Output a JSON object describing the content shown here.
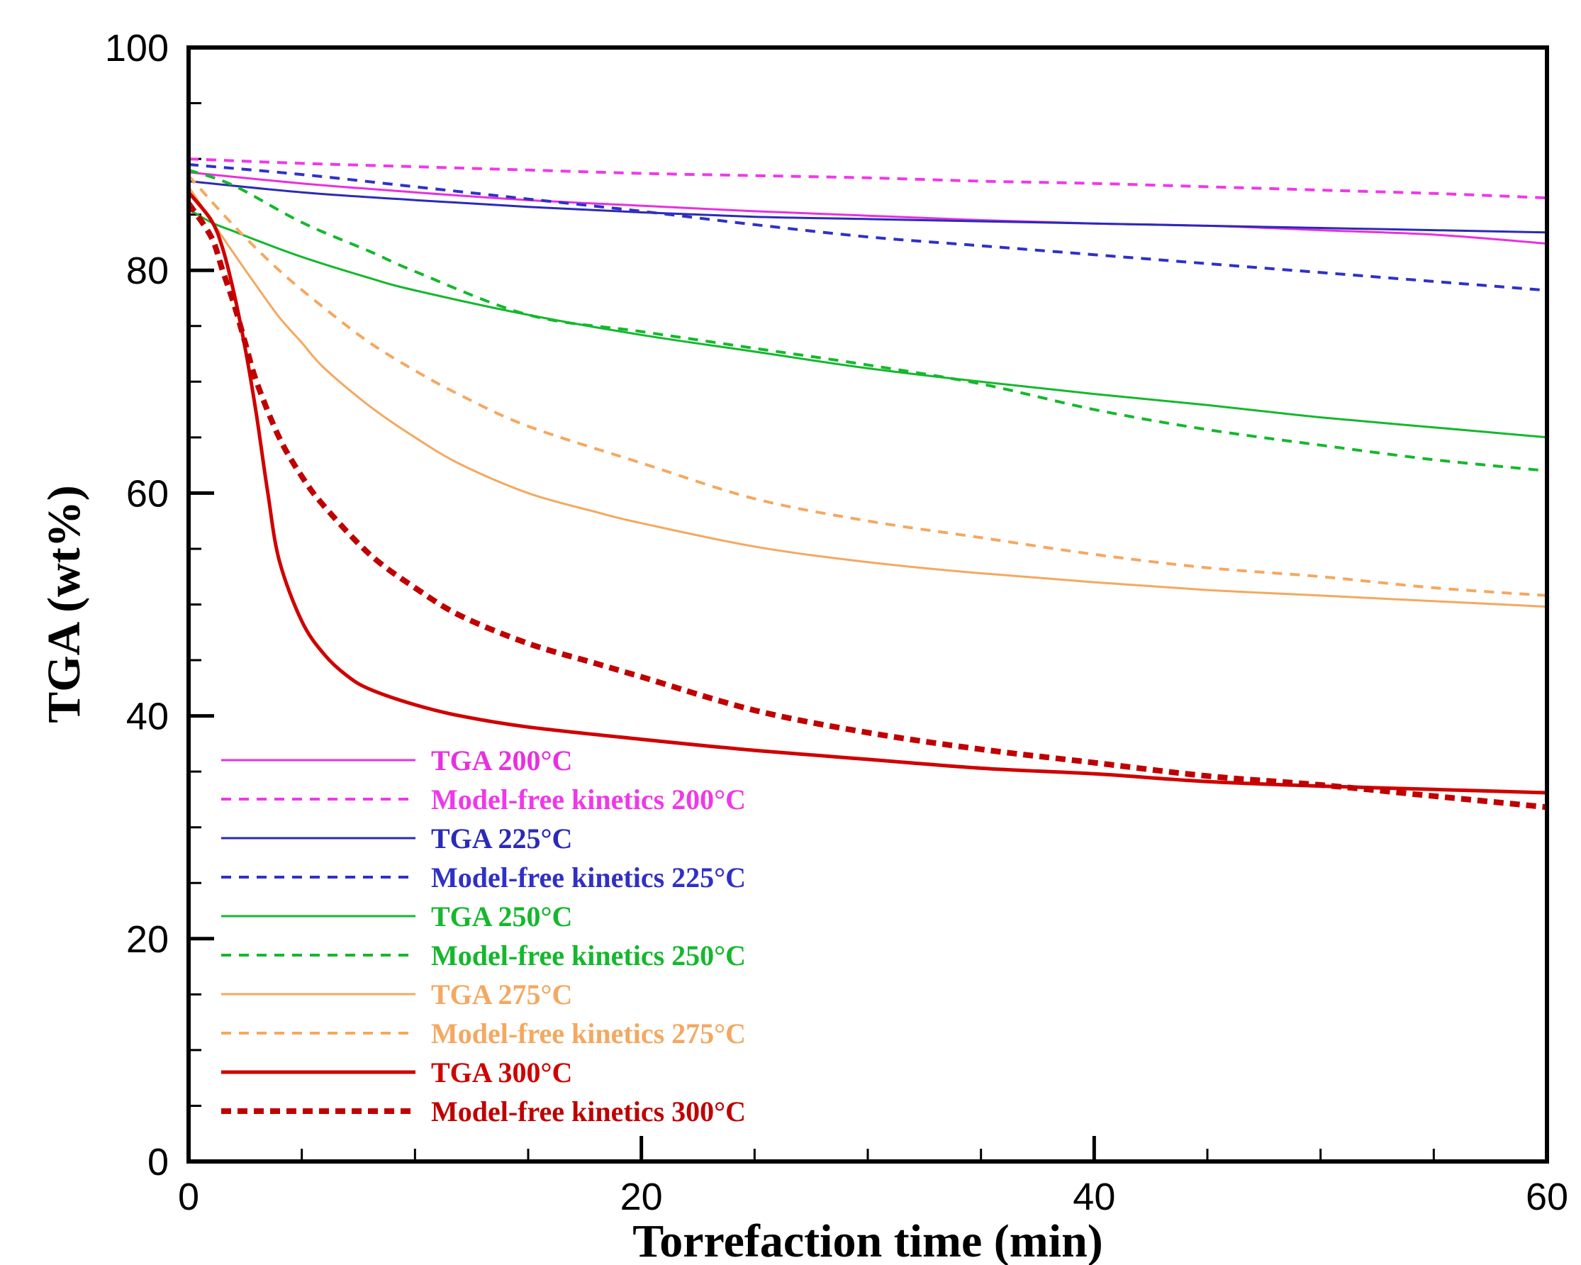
{
  "chart_data": {
    "type": "line",
    "title": "",
    "xlabel": "Torrefaction time (min)",
    "ylabel": "TGA (wt%)",
    "xlim": [
      0,
      60
    ],
    "ylim": [
      0,
      100
    ],
    "x_ticks": [
      0,
      20,
      40,
      60
    ],
    "y_ticks": [
      0,
      20,
      40,
      60,
      80,
      100
    ],
    "legend_position": "bottom-left",
    "series": [
      {
        "name": "TGA 200°C",
        "color": "#e830e0",
        "style": "solid",
        "x": [
          0,
          5,
          10,
          15,
          20,
          25,
          30,
          35,
          40,
          45,
          50,
          55,
          60
        ],
        "y": [
          88.8,
          87.8,
          87.0,
          86.3,
          85.8,
          85.3,
          84.9,
          84.5,
          84.2,
          84.0,
          83.6,
          83.2,
          82.4
        ]
      },
      {
        "name": "Model-free kinetics 200°C",
        "color": "#f038e8",
        "style": "dashed",
        "x": [
          0,
          5,
          10,
          15,
          20,
          25,
          30,
          35,
          40,
          45,
          50,
          55,
          60
        ],
        "y": [
          90.0,
          89.6,
          89.3,
          89.0,
          88.7,
          88.5,
          88.3,
          88.0,
          87.8,
          87.5,
          87.2,
          86.9,
          86.5
        ]
      },
      {
        "name": "TGA 225°C",
        "color": "#2a2ab8",
        "style": "solid",
        "x": [
          0,
          5,
          10,
          15,
          20,
          25,
          30,
          35,
          40,
          45,
          50,
          55,
          60
        ],
        "y": [
          88.0,
          87.0,
          86.3,
          85.7,
          85.2,
          84.8,
          84.6,
          84.4,
          84.2,
          84.0,
          83.8,
          83.6,
          83.4
        ]
      },
      {
        "name": "Model-free kinetics 225°C",
        "color": "#3030c8",
        "style": "dashed",
        "x": [
          0,
          5,
          10,
          15,
          20,
          25,
          30,
          35,
          40,
          45,
          50,
          55,
          60
        ],
        "y": [
          89.5,
          88.6,
          87.5,
          86.4,
          85.3,
          84.1,
          83.0,
          82.2,
          81.4,
          80.6,
          79.8,
          79.0,
          78.2
        ]
      },
      {
        "name": "TGA 250°C",
        "color": "#14b82c",
        "style": "solid",
        "x": [
          0,
          1,
          2,
          3,
          5,
          8,
          10,
          15,
          20,
          25,
          30,
          35,
          40,
          45,
          50,
          55,
          60
        ],
        "y": [
          85.5,
          84.3,
          83.5,
          82.7,
          81.2,
          79.3,
          78.2,
          76.0,
          74.2,
          72.7,
          71.2,
          70.0,
          68.9,
          67.9,
          66.8,
          65.9,
          65.0
        ]
      },
      {
        "name": "Model-free kinetics 250°C",
        "color": "#14b82c",
        "style": "dashed",
        "x": [
          0,
          2,
          5,
          8,
          10,
          15,
          20,
          25,
          30,
          35,
          40,
          45,
          50,
          55,
          60
        ],
        "y": [
          89.0,
          87.6,
          84.3,
          81.7,
          79.9,
          76.0,
          74.5,
          73.0,
          71.5,
          69.8,
          67.5,
          65.7,
          64.3,
          63.0,
          62.0
        ]
      },
      {
        "name": "TGA 275°C",
        "color": "#f4a860",
        "style": "solid",
        "x": [
          0,
          1,
          2,
          3,
          4,
          5,
          6,
          8,
          10,
          12,
          15,
          18,
          20,
          25,
          30,
          35,
          40,
          45,
          50,
          55,
          60
        ],
        "y": [
          87.5,
          84.5,
          81.5,
          78.6,
          75.8,
          73.5,
          71.2,
          67.8,
          65.0,
          62.6,
          60.0,
          58.3,
          57.3,
          55.2,
          53.8,
          52.8,
          52.0,
          51.3,
          50.8,
          50.3,
          49.8
        ]
      },
      {
        "name": "Model-free kinetics 275°C",
        "color": "#f4a860",
        "style": "dashed",
        "x": [
          0,
          2,
          4,
          6,
          8,
          10,
          12,
          15,
          20,
          25,
          30,
          35,
          40,
          45,
          50,
          55,
          60
        ],
        "y": [
          88.5,
          84.0,
          80.0,
          76.6,
          73.5,
          71.0,
          68.8,
          66.0,
          62.7,
          59.5,
          57.5,
          56.0,
          54.5,
          53.3,
          52.5,
          51.5,
          50.8
        ]
      },
      {
        "name": "TGA 300°C",
        "color": "#d00000",
        "style": "solid-thick",
        "x": [
          0,
          1,
          1.5,
          2,
          2.5,
          3,
          3.5,
          4,
          5,
          6,
          7,
          8,
          10,
          12,
          15,
          20,
          25,
          30,
          35,
          40,
          45,
          50,
          55,
          60
        ],
        "y": [
          87.0,
          84.5,
          82.0,
          78.0,
          73.0,
          67.0,
          60.0,
          54.0,
          48.5,
          45.5,
          43.6,
          42.4,
          41.0,
          40.0,
          39.0,
          37.9,
          36.9,
          36.1,
          35.3,
          34.8,
          34.1,
          33.7,
          33.4,
          33.1
        ]
      },
      {
        "name": "Model-free kinetics 300°C",
        "color": "#c00000",
        "style": "dashed-thick",
        "x": [
          0,
          1,
          1.5,
          2,
          2.5,
          3,
          4,
          5,
          6,
          8,
          10,
          12,
          15,
          18,
          20,
          25,
          30,
          35,
          40,
          45,
          50,
          55,
          60
        ],
        "y": [
          86.0,
          83.0,
          80.0,
          77.0,
          73.5,
          70.0,
          65.0,
          61.5,
          58.8,
          54.5,
          51.5,
          49.0,
          46.5,
          44.7,
          43.5,
          40.5,
          38.5,
          37.0,
          35.8,
          34.6,
          33.8,
          32.8,
          31.8
        ]
      }
    ]
  }
}
